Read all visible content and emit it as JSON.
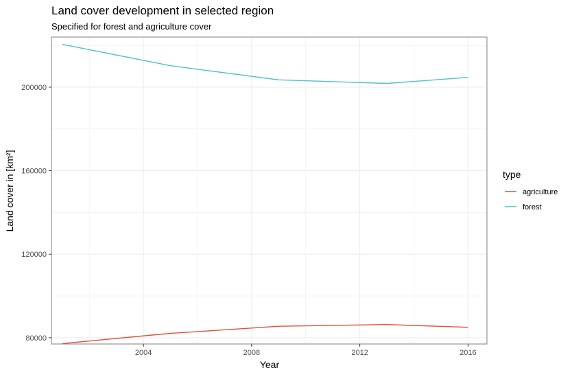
{
  "chart_data": {
    "type": "line",
    "title": "Land cover development in selected region",
    "subtitle": "Specified for forest and agriculture cover",
    "xlabel": "Year",
    "ylabel": "Land cover in [km²]",
    "xlim": [
      2000.6,
      2016.7
    ],
    "ylim": [
      77000,
      205600
    ],
    "x_ticks": [
      2004,
      2008,
      2012,
      2016
    ],
    "x_tick_labels": [
      "2004",
      "2008",
      "2012",
      "2016"
    ],
    "y_ticks": [
      80000,
      120000,
      160000,
      200000
    ],
    "y_tick_labels": [
      "80000",
      "120000",
      "160000",
      "200000"
    ],
    "grid": true,
    "legend": {
      "title": "type",
      "position": "right"
    },
    "series": [
      {
        "name": "agriculture",
        "color": "#e0503a",
        "x": [
          2001,
          2005,
          2009,
          2013,
          2016
        ],
        "y": [
          77200,
          82100,
          85500,
          86300,
          85000
        ]
      },
      {
        "name": "forest",
        "color": "#4fc1cb",
        "x": [
          2001,
          2005,
          2009,
          2013,
          2016
        ],
        "y": [
          220500,
          210300,
          203500,
          201800,
          204700
        ]
      }
    ]
  }
}
